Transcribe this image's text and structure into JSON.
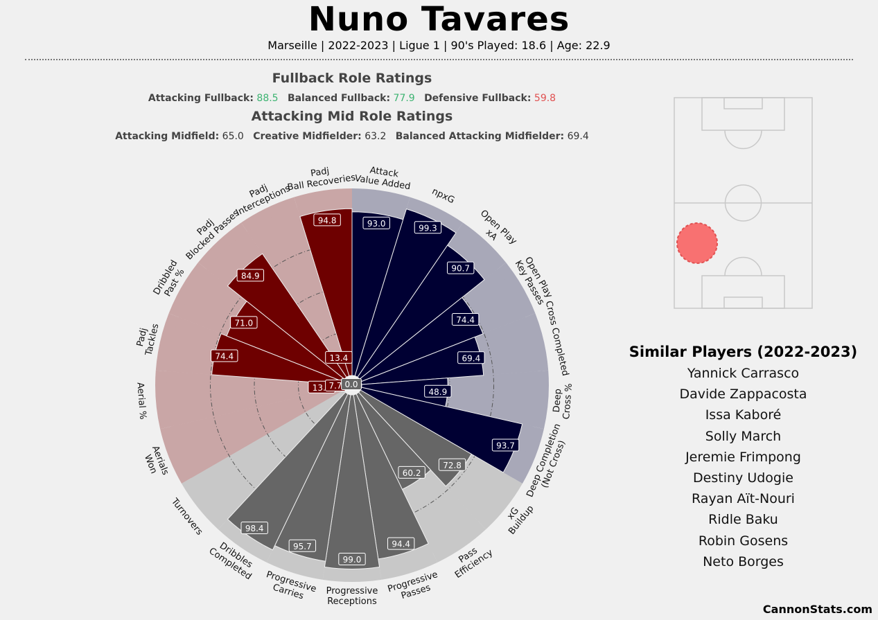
{
  "header": {
    "title": "Nuno Tavares",
    "subtitle": "Marseille | 2022-2023 | Ligue 1 | 90's Played: 18.6 | Age: 22.9"
  },
  "fullback": {
    "title": "Fullback Role Ratings",
    "items": [
      {
        "label": "Attacking Fullback:",
        "value": "88.5",
        "color": "#3cb371"
      },
      {
        "label": "Balanced Fullback:",
        "value": "77.9",
        "color": "#3cb371"
      },
      {
        "label": "Defensive Fullback:",
        "value": "59.8",
        "color": "#e05050"
      }
    ]
  },
  "attacking_mid": {
    "title": "Attacking Mid Role Ratings",
    "items": [
      {
        "label": "Attacking Midfield:",
        "value": "65.0"
      },
      {
        "label": "Creative Midfielder:",
        "value": "63.2"
      },
      {
        "label": "Balanced Attacking Midfielder:",
        "value": "69.4"
      }
    ]
  },
  "similar": {
    "title": "Similar Players (2022-2023)",
    "players": [
      "Yannick Carrasco",
      "Davide Zappacosta",
      "Issa Kaboré",
      "Solly March",
      "Jeremie Frimpong",
      "Destiny Udogie",
      "Rayan Aït-Nouri",
      "Ridle Baku",
      "Robin Gosens",
      "Neto Borges"
    ]
  },
  "brand": "CannonStats.com",
  "colors": {
    "attack": "#000033",
    "defense": "#6e0000",
    "possession": "#666666",
    "attack_bg": "#a8a8b8",
    "defense_bg": "#c9a6a6",
    "possession_bg": "#c8c8c8",
    "marker": "#f87171"
  },
  "chart_data": {
    "type": "radial-bar",
    "range": [
      0,
      100
    ],
    "series": [
      {
        "name": "Attack",
        "color": "#000033",
        "metrics": [
          {
            "label": [
              "Attack",
              "Value Added"
            ],
            "value": 93.0
          },
          {
            "label": [
              "npxG"
            ],
            "value": 99.3
          },
          {
            "label": [
              "Open Play",
              "xA"
            ],
            "value": 90.7
          },
          {
            "label": [
              "Open Play",
              "Key Passes"
            ],
            "value": 74.4
          },
          {
            "label": [
              "Cross Completed"
            ],
            "value": 69.4
          },
          {
            "label": [
              "Deep",
              "Cross %"
            ],
            "value": 48.9
          },
          {
            "label": [
              "Deep Completion",
              "(Not Cross)"
            ],
            "value": 93.7
          }
        ]
      },
      {
        "name": "Possession",
        "color": "#666666",
        "metrics": [
          {
            "label": [
              "xG",
              "Buildup"
            ],
            "value": 72.8
          },
          {
            "label": [
              "Pass",
              "Efficiency"
            ],
            "value": 60.2
          },
          {
            "label": [
              "Progressive",
              "Passes"
            ],
            "value": 94.4
          },
          {
            "label": [
              "Progressive",
              "Receptions"
            ],
            "value": 99.0
          },
          {
            "label": [
              "Progressive",
              "Carries"
            ],
            "value": 95.7
          },
          {
            "label": [
              "Dribbles",
              "Completed"
            ],
            "value": 98.4
          },
          {
            "label": [
              "Turnovers"
            ],
            "value": 0
          }
        ]
      },
      {
        "name": "Defense",
        "color": "#6e0000",
        "metrics": [
          {
            "label": [
              "Aerials",
              "Won"
            ],
            "value": 0
          },
          {
            "label": [
              "Aerial %"
            ],
            "value": 13.6
          },
          {
            "label": [
              "Padj",
              "Tackles"
            ],
            "value": 74.4
          },
          {
            "label": [
              "Dribbled",
              "Past %"
            ],
            "value": 71.0
          },
          {
            "label": [
              "Padj",
              "Blocked Passes"
            ],
            "value": 84.9
          },
          {
            "label": [
              "Padj",
              "Interceptions"
            ],
            "value": 13.4
          },
          {
            "label": [
              "Padj",
              "Ball Recoveries"
            ],
            "value": 94.8
          }
        ]
      }
    ],
    "extra_labels": [
      "7.7",
      "0.0"
    ]
  }
}
